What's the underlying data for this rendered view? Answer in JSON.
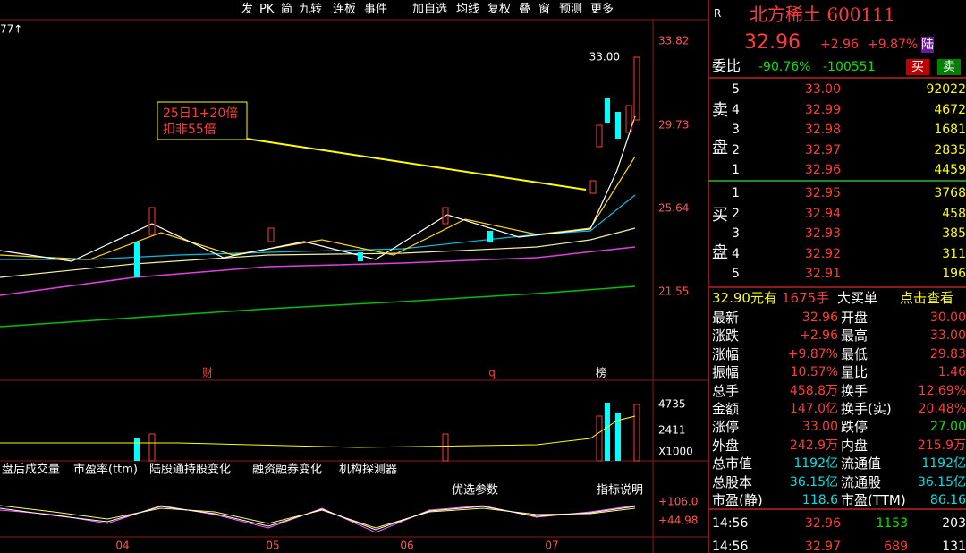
{
  "toolbar": [
    "发",
    "PK",
    "简",
    "九转",
    "连板",
    "事件",
    "加自选",
    "均线",
    "复权",
    "叠",
    "窗",
    "预测",
    "更多"
  ],
  "chart": {
    "corner_label": "77↑",
    "price_axis": [
      "33.82",
      "29.73",
      "25.64",
      "21.55"
    ],
    "high_label": "33.00",
    "annotation": [
      "25日1+20倍",
      "扣非55倍"
    ],
    "markers": [
      "财",
      "q",
      "榜"
    ],
    "volume_axis": [
      "4735",
      "2411",
      "X1000"
    ],
    "tabs": [
      "盘后成交量",
      "市盈率(ttm)",
      "陆股通持股变化",
      "融资融券变化",
      "机构探测器"
    ],
    "indicator_buttons": [
      "优选参数",
      "指标说明"
    ],
    "indicator_axis": [
      "+106.0",
      "+44.98"
    ],
    "months": [
      "04",
      "05",
      "06",
      "07"
    ]
  },
  "stock": {
    "flag": "R",
    "name": "北方稀土 600111",
    "price": "32.96",
    "change": "+2.96",
    "pct": "+9.87%",
    "badge": "陆"
  },
  "weibi": {
    "label": "委比",
    "ratio": "-90.76%",
    "diff": "-100551",
    "sell_btn": "卖",
    "buy_btn": "买"
  },
  "sell": {
    "label": [
      "卖",
      "盘"
    ],
    "rows": [
      [
        "5",
        "33.00",
        "92022"
      ],
      [
        "4",
        "32.99",
        "4672"
      ],
      [
        "3",
        "32.98",
        "1681"
      ],
      [
        "2",
        "32.97",
        "2835"
      ],
      [
        "1",
        "32.96",
        "4459"
      ]
    ]
  },
  "buy": {
    "label": [
      "买",
      "盘"
    ],
    "rows": [
      [
        "1",
        "32.95",
        "3768"
      ],
      [
        "2",
        "32.94",
        "458"
      ],
      [
        "3",
        "32.93",
        "385"
      ],
      [
        "4",
        "32.92",
        "311"
      ],
      [
        "5",
        "32.91",
        "196"
      ]
    ]
  },
  "big_order": [
    "32.90元有",
    "1675手",
    "大买单",
    "点击查看"
  ],
  "stats": [
    [
      "最新",
      "32.96",
      "开盘",
      "30.00"
    ],
    [
      "涨跌",
      "+2.96",
      "最高",
      "33.00"
    ],
    [
      "涨幅",
      "+9.87%",
      "最低",
      "29.83"
    ],
    [
      "振幅",
      "10.57%",
      "量比",
      "1.46"
    ],
    [
      "总手",
      "458.8万",
      "换手",
      "12.69%"
    ],
    [
      "金额",
      "147.0亿",
      "换手(实)",
      "20.48%"
    ],
    [
      "涨停",
      "33.00",
      "跌停",
      "27.00"
    ],
    [
      "外盘",
      "242.9万",
      "内盘",
      "215.9万"
    ],
    [
      "总市值",
      "1192亿",
      "流通值",
      "1192亿"
    ],
    [
      "总股本",
      "36.15亿",
      "流通股",
      "36.15亿"
    ],
    [
      "市盈(静)",
      "118.6",
      "市盈(TTM)",
      "86.16"
    ]
  ],
  "ticks": [
    [
      "14:56",
      "32.96",
      "1153",
      "203"
    ],
    [
      "14:56",
      "32.97",
      "689",
      "131"
    ]
  ]
}
